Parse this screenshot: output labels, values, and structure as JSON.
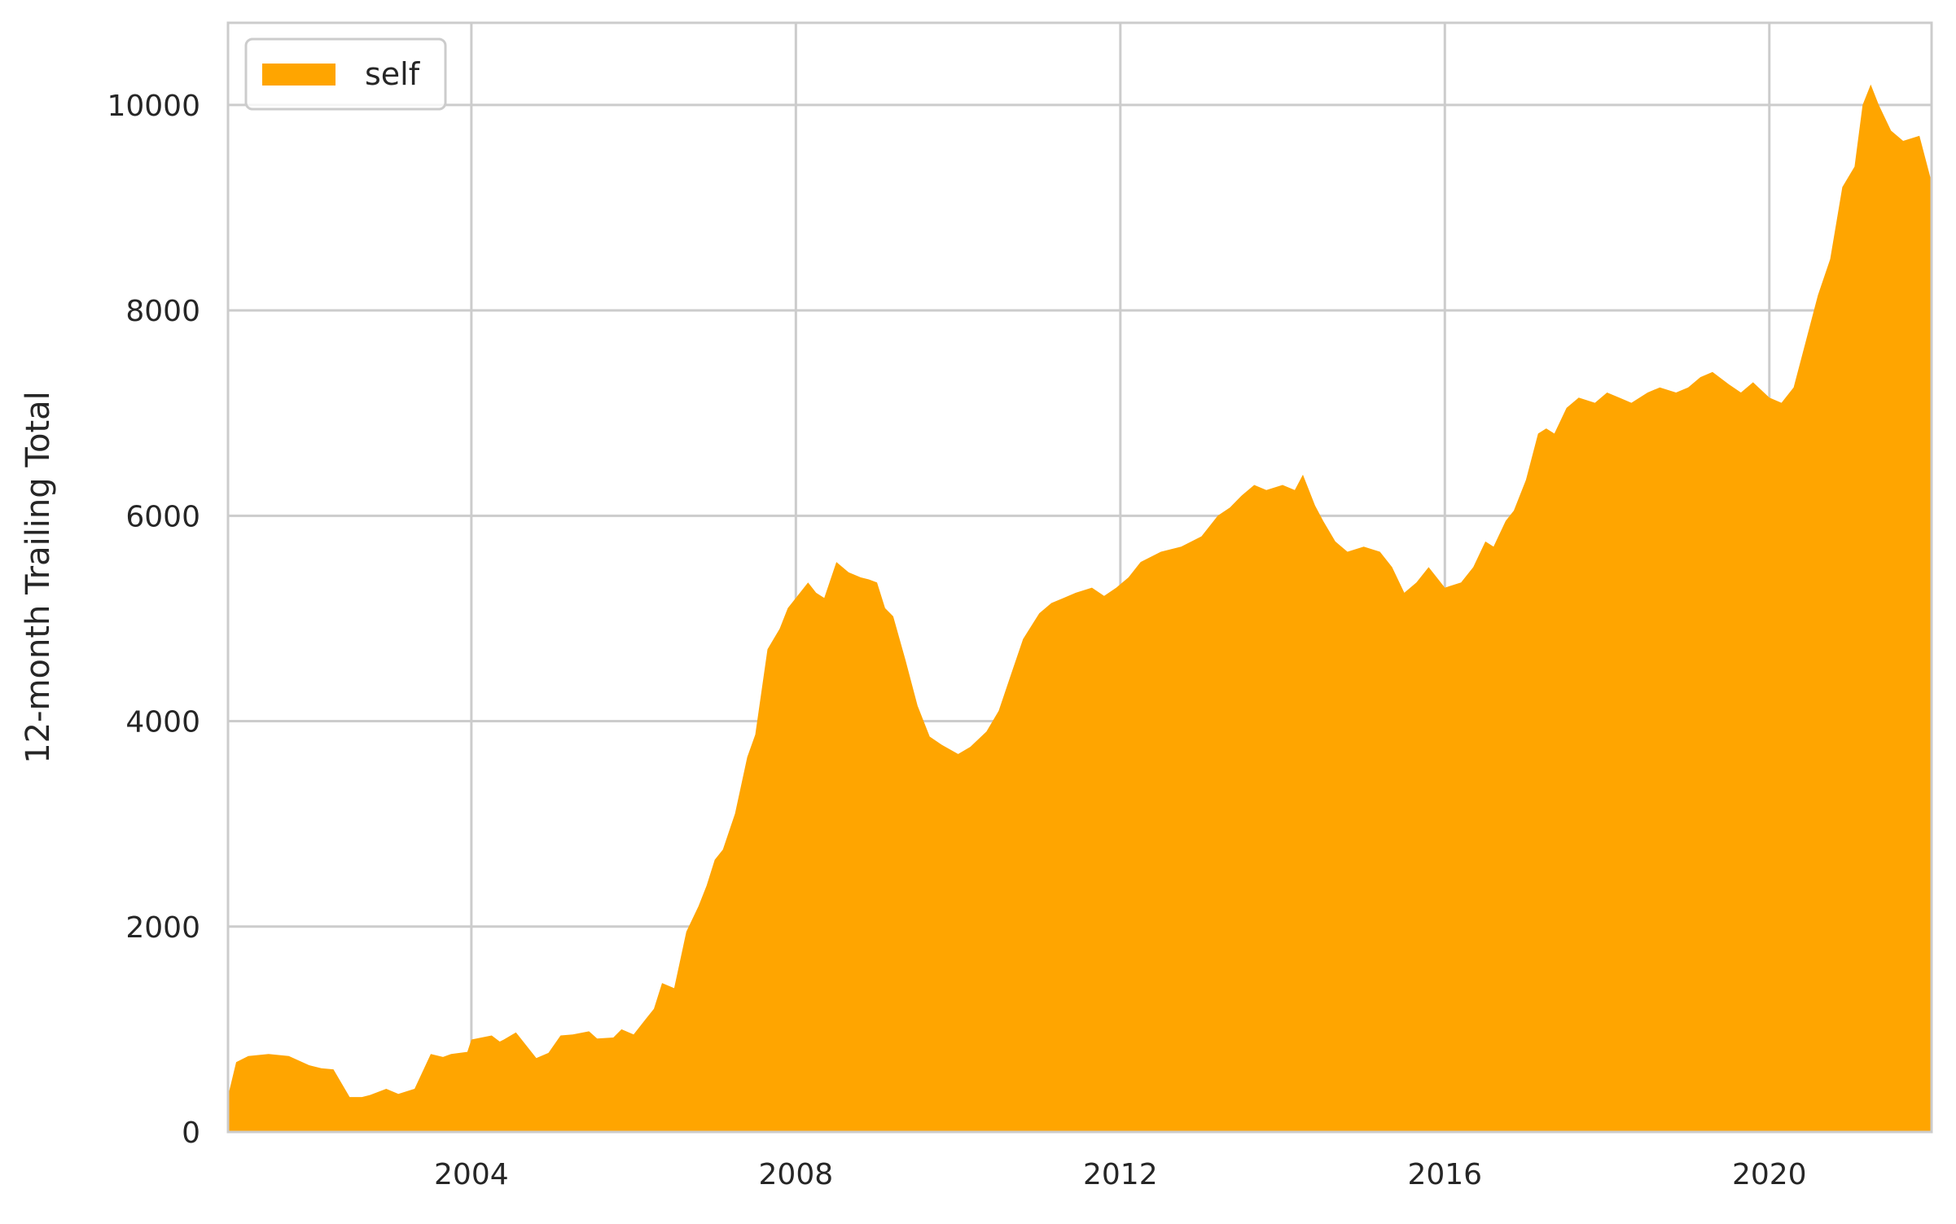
{
  "chart_data": {
    "type": "area",
    "ylabel": "12-month Trailing Total",
    "xlabel": "",
    "title": "",
    "xlim": [
      2001.0,
      2022.0
    ],
    "ylim": [
      0,
      10800
    ],
    "xticks": [
      2004,
      2008,
      2012,
      2016,
      2020
    ],
    "xtick_labels": [
      "2004",
      "2008",
      "2012",
      "2016",
      "2020"
    ],
    "yticks": [
      0,
      2000,
      4000,
      6000,
      8000,
      10000
    ],
    "ytick_labels": [
      "0",
      "2000",
      "4000",
      "6000",
      "8000",
      "10000"
    ],
    "grid": true,
    "legend": {
      "position": "top-left",
      "entries": [
        "self"
      ]
    },
    "colors": {
      "area": "#FFA500",
      "grid": "#cccccc",
      "text": "#262626"
    },
    "series": [
      {
        "name": "self",
        "x": [
          2001.0,
          2001.1,
          2001.25,
          2001.5,
          2001.75,
          2002.0,
          2002.15,
          2002.3,
          2002.5,
          2002.65,
          2002.75,
          2002.95,
          2003.1,
          2003.3,
          2003.5,
          2003.65,
          2003.75,
          2003.95,
          2004.0,
          2004.25,
          2004.35,
          2004.4,
          2004.55,
          2004.8,
          2004.95,
          2005.1,
          2005.25,
          2005.45,
          2005.55,
          2005.75,
          2005.85,
          2006.0,
          2006.15,
          2006.25,
          2006.35,
          2006.5,
          2006.65,
          2006.8,
          2006.9,
          2007.0,
          2007.1,
          2007.25,
          2007.4,
          2007.5,
          2007.65,
          2007.8,
          2007.9,
          2008.0,
          2008.15,
          2008.25,
          2008.35,
          2008.5,
          2008.65,
          2008.8,
          2008.9,
          2009.0,
          2009.1,
          2009.2,
          2009.35,
          2009.5,
          2009.65,
          2009.8,
          2010.0,
          2010.15,
          2010.35,
          2010.5,
          2010.65,
          2010.8,
          2011.0,
          2011.15,
          2011.3,
          2011.45,
          2011.65,
          2011.8,
          2011.95,
          2012.1,
          2012.25,
          2012.5,
          2012.75,
          2013.0,
          2013.2,
          2013.35,
          2013.5,
          2013.65,
          2013.8,
          2014.0,
          2014.15,
          2014.25,
          2014.4,
          2014.5,
          2014.65,
          2014.8,
          2015.0,
          2015.2,
          2015.35,
          2015.5,
          2015.65,
          2015.8,
          2016.0,
          2016.2,
          2016.35,
          2016.5,
          2016.6,
          2016.75,
          2016.85,
          2017.0,
          2017.15,
          2017.25,
          2017.35,
          2017.5,
          2017.65,
          2017.85,
          2018.0,
          2018.15,
          2018.3,
          2018.5,
          2018.65,
          2018.85,
          2019.0,
          2019.15,
          2019.3,
          2019.5,
          2019.65,
          2019.8,
          2020.0,
          2020.15,
          2020.3,
          2020.45,
          2020.6,
          2020.75,
          2020.9,
          2021.05,
          2021.15,
          2021.25,
          2021.35,
          2021.5,
          2021.65,
          2021.85,
          2022.0
        ],
        "values": [
          350,
          680,
          740,
          760,
          740,
          650,
          620,
          610,
          340,
          340,
          360,
          420,
          370,
          420,
          760,
          730,
          760,
          780,
          900,
          940,
          880,
          900,
          970,
          720,
          770,
          940,
          950,
          980,
          910,
          920,
          1000,
          950,
          1100,
          1200,
          1450,
          1400,
          1950,
          2200,
          2400,
          2650,
          2750,
          3100,
          3650,
          3870,
          4700,
          4900,
          5100,
          5200,
          5350,
          5250,
          5200,
          5550,
          5450,
          5400,
          5380,
          5350,
          5100,
          5020,
          4600,
          4150,
          3850,
          3770,
          3680,
          3750,
          3900,
          4100,
          4450,
          4800,
          5050,
          5150,
          5200,
          5250,
          5300,
          5220,
          5300,
          5400,
          5550,
          5650,
          5700,
          5800,
          6000,
          6080,
          6200,
          6300,
          6250,
          6300,
          6250,
          6400,
          6100,
          5950,
          5750,
          5650,
          5700,
          5650,
          5500,
          5250,
          5350,
          5500,
          5300,
          5350,
          5500,
          5750,
          5700,
          5950,
          6050,
          6350,
          6800,
          6850,
          6800,
          7050,
          7150,
          7100,
          7200,
          7150,
          7100,
          7200,
          7250,
          7200,
          7250,
          7350,
          7400,
          7280,
          7200,
          7300,
          7150,
          7100,
          7250,
          7700,
          8150,
          8500,
          9200,
          9400,
          10000,
          10200,
          10000,
          9750,
          9650,
          9700,
          9250
        ]
      }
    ]
  }
}
